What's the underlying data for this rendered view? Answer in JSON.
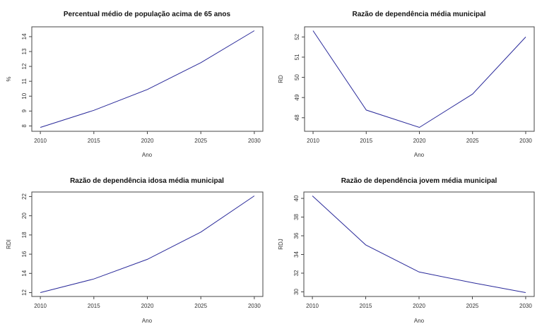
{
  "line_color": "#2a2a9a",
  "chart_data": [
    {
      "type": "line",
      "title": "Percentual médio de população acima de 65 anos",
      "xlabel": "Ano",
      "ylabel": "%",
      "x": [
        2010,
        2015,
        2020,
        2025,
        2030
      ],
      "values": [
        7.9,
        9.05,
        10.45,
        12.25,
        14.4
      ],
      "xticks": [
        2010,
        2015,
        2020,
        2025,
        2030
      ],
      "yticks": [
        8,
        9,
        10,
        11,
        12,
        13,
        14
      ],
      "grid": false
    },
    {
      "type": "line",
      "title": "Razão de dependência média municipal",
      "xlabel": "Ano",
      "ylabel": "RD",
      "x": [
        2010,
        2015,
        2020,
        2025,
        2030
      ],
      "values": [
        52.31,
        48.38,
        47.52,
        49.17,
        52.0
      ],
      "xticks": [
        2010,
        2015,
        2020,
        2025,
        2030
      ],
      "yticks": [
        48,
        49,
        50,
        51,
        52
      ],
      "grid": false
    },
    {
      "type": "line",
      "title": "Razão de dependência idosa média municipal",
      "xlabel": "Ano",
      "ylabel": "RDI",
      "x": [
        2010,
        2015,
        2020,
        2025,
        2030
      ],
      "values": [
        12.0,
        13.42,
        15.46,
        18.3,
        22.07
      ],
      "xticks": [
        2010,
        2015,
        2020,
        2025,
        2030
      ],
      "yticks": [
        12,
        14,
        16,
        18,
        20,
        22
      ],
      "grid": false
    },
    {
      "type": "line",
      "title": "Razão de dependência jovem média municipal",
      "xlabel": "Ano",
      "ylabel": "RDJ",
      "x": [
        2010,
        2015,
        2020,
        2025,
        2030
      ],
      "values": [
        40.27,
        35.03,
        32.13,
        30.98,
        29.92
      ],
      "xticks": [
        2010,
        2015,
        2020,
        2025,
        2030
      ],
      "yticks": [
        30,
        32,
        34,
        36,
        38,
        40
      ],
      "grid": false
    }
  ]
}
